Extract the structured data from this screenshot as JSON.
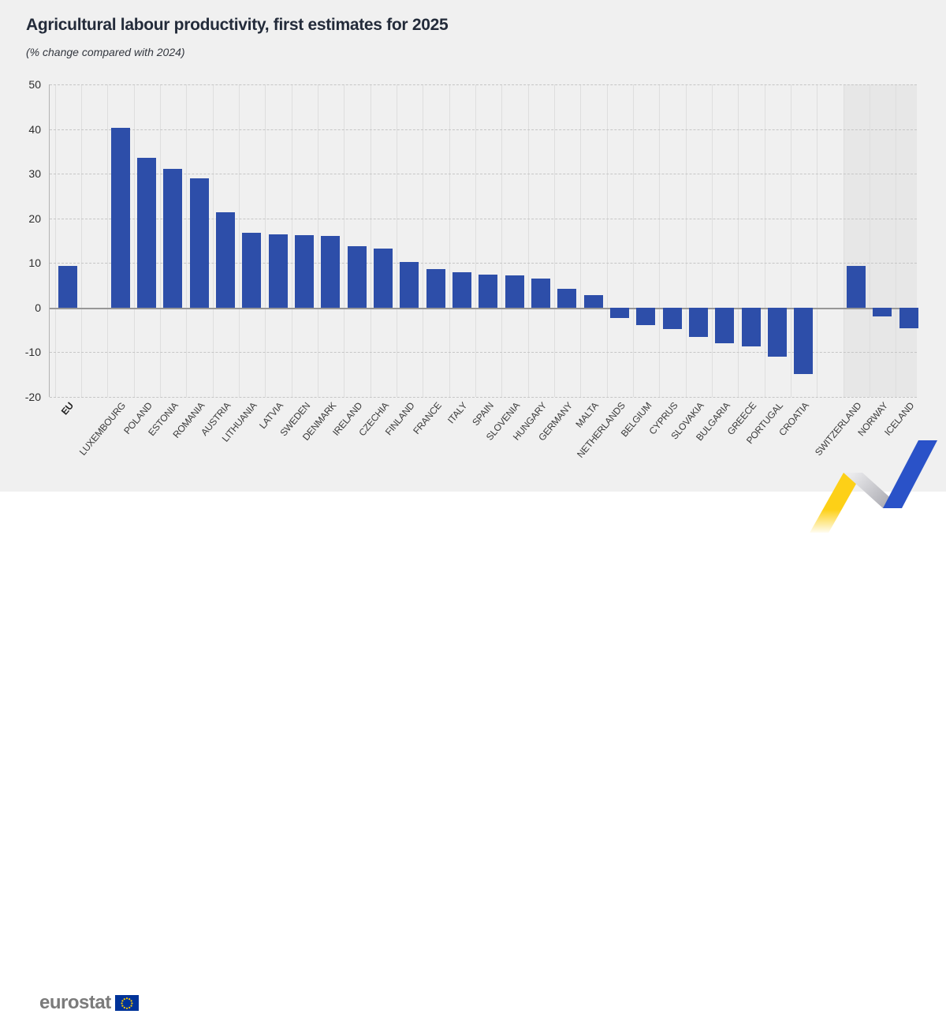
{
  "header": {
    "title": "Agricultural labour productivity, first estimates for 2025",
    "subtitle": "(% change compared with 2024)"
  },
  "footer": {
    "logo_text": "eurostat",
    "logo_flag_icon": "eu-flag-icon"
  },
  "colors": {
    "canvas_bg": "#f0f0f0",
    "bar": "#2d4ea9",
    "efta_band": "#e7e7e7",
    "zero_line": "#979797",
    "grid_dashed": "#c6c6c6",
    "ribbon_yellow": "#fdd017",
    "ribbon_gray": "#b9b9bf",
    "ribbon_blue": "#2a52c8",
    "eu_flag_blue": "#003399",
    "eu_flag_stars": "#ffcc00"
  },
  "chart_data": {
    "type": "bar",
    "title": "Agricultural labour productivity, first estimates for 2025",
    "subtitle": "(% change compared with 2024)",
    "ylabel": "% change compared with 2024",
    "xlabel": "",
    "ylim": [
      -20,
      50
    ],
    "yticks": [
      50,
      40,
      30,
      20,
      10,
      0,
      -10,
      -20
    ],
    "grid": "horizontal-dashed",
    "legend": "none",
    "categories": [
      "EU",
      "LUXEMBOURG",
      "POLAND",
      "ESTONIA",
      "ROMANIA",
      "AUSTRIA",
      "LITHUANIA",
      "LATVIA",
      "SWEDEN",
      "DENMARK",
      "IRELAND",
      "CZECHIA",
      "FINLAND",
      "FRANCE",
      "ITALY",
      "SPAIN",
      "SLOVENIA",
      "HUNGARY",
      "GERMANY",
      "MALTA",
      "NETHERLANDS",
      "BELGIUM",
      "CYPRUS",
      "SLOVAKIA",
      "BULGARIA",
      "GREECE",
      "PORTUGAL",
      "CROATIA",
      "SWITZERLAND",
      "NORWAY",
      "ICELAND"
    ],
    "values": [
      9.4,
      40.2,
      33.6,
      31.1,
      28.9,
      21.3,
      16.8,
      16.4,
      16.3,
      16.0,
      13.7,
      13.3,
      10.2,
      8.7,
      7.9,
      7.4,
      7.3,
      6.5,
      4.3,
      2.8,
      -2.4,
      -3.9,
      -4.8,
      -6.5,
      -8.0,
      -8.7,
      -10.9,
      -14.9,
      9.4,
      -1.9,
      -4.6
    ],
    "bold_categories": [
      "EU"
    ],
    "gap_before": [
      "LUXEMBOURG",
      "SWITZERLAND"
    ],
    "shaded_categories": [
      "SWITZERLAND",
      "NORWAY",
      "ICELAND"
    ]
  }
}
